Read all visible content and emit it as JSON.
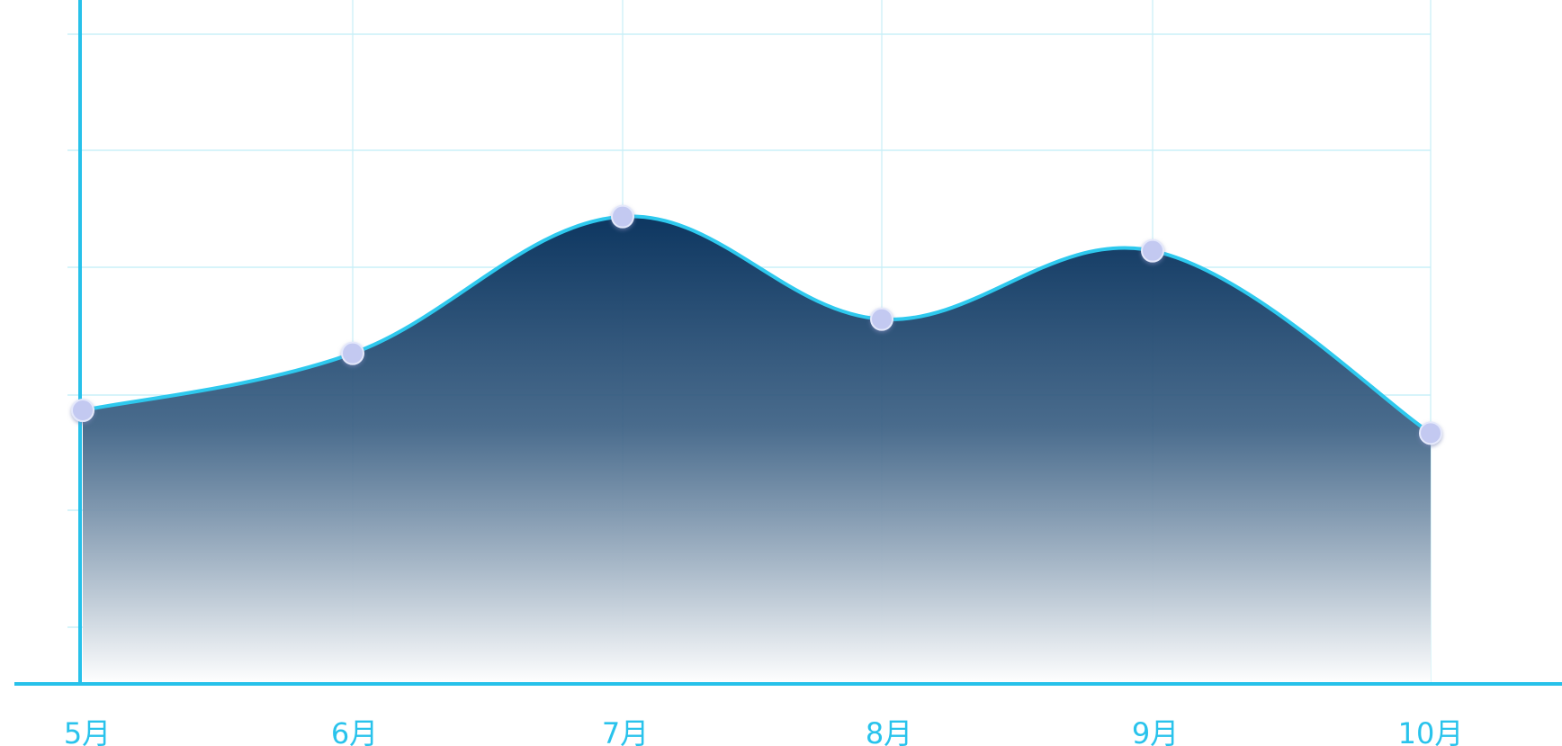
{
  "chart_data": {
    "type": "area",
    "categories": [
      "5月",
      "6月",
      "7月",
      "8月",
      "9月",
      "10月"
    ],
    "series": [
      {
        "values": [
          24,
          29,
          41,
          32,
          38,
          22
        ]
      }
    ],
    "title": "",
    "xlabel": "",
    "ylabel": "",
    "ylim": [
      0,
      60
    ],
    "grid": true,
    "legend": "none",
    "colors": {
      "line": "#2ec9ee",
      "fill_top": "#0d3660",
      "fill_bottom": "#ffffff",
      "point": "#c3c9f1",
      "axis": "#27c1ea",
      "grid": "#bfeef8",
      "tick_label": "#29c3ec"
    }
  }
}
